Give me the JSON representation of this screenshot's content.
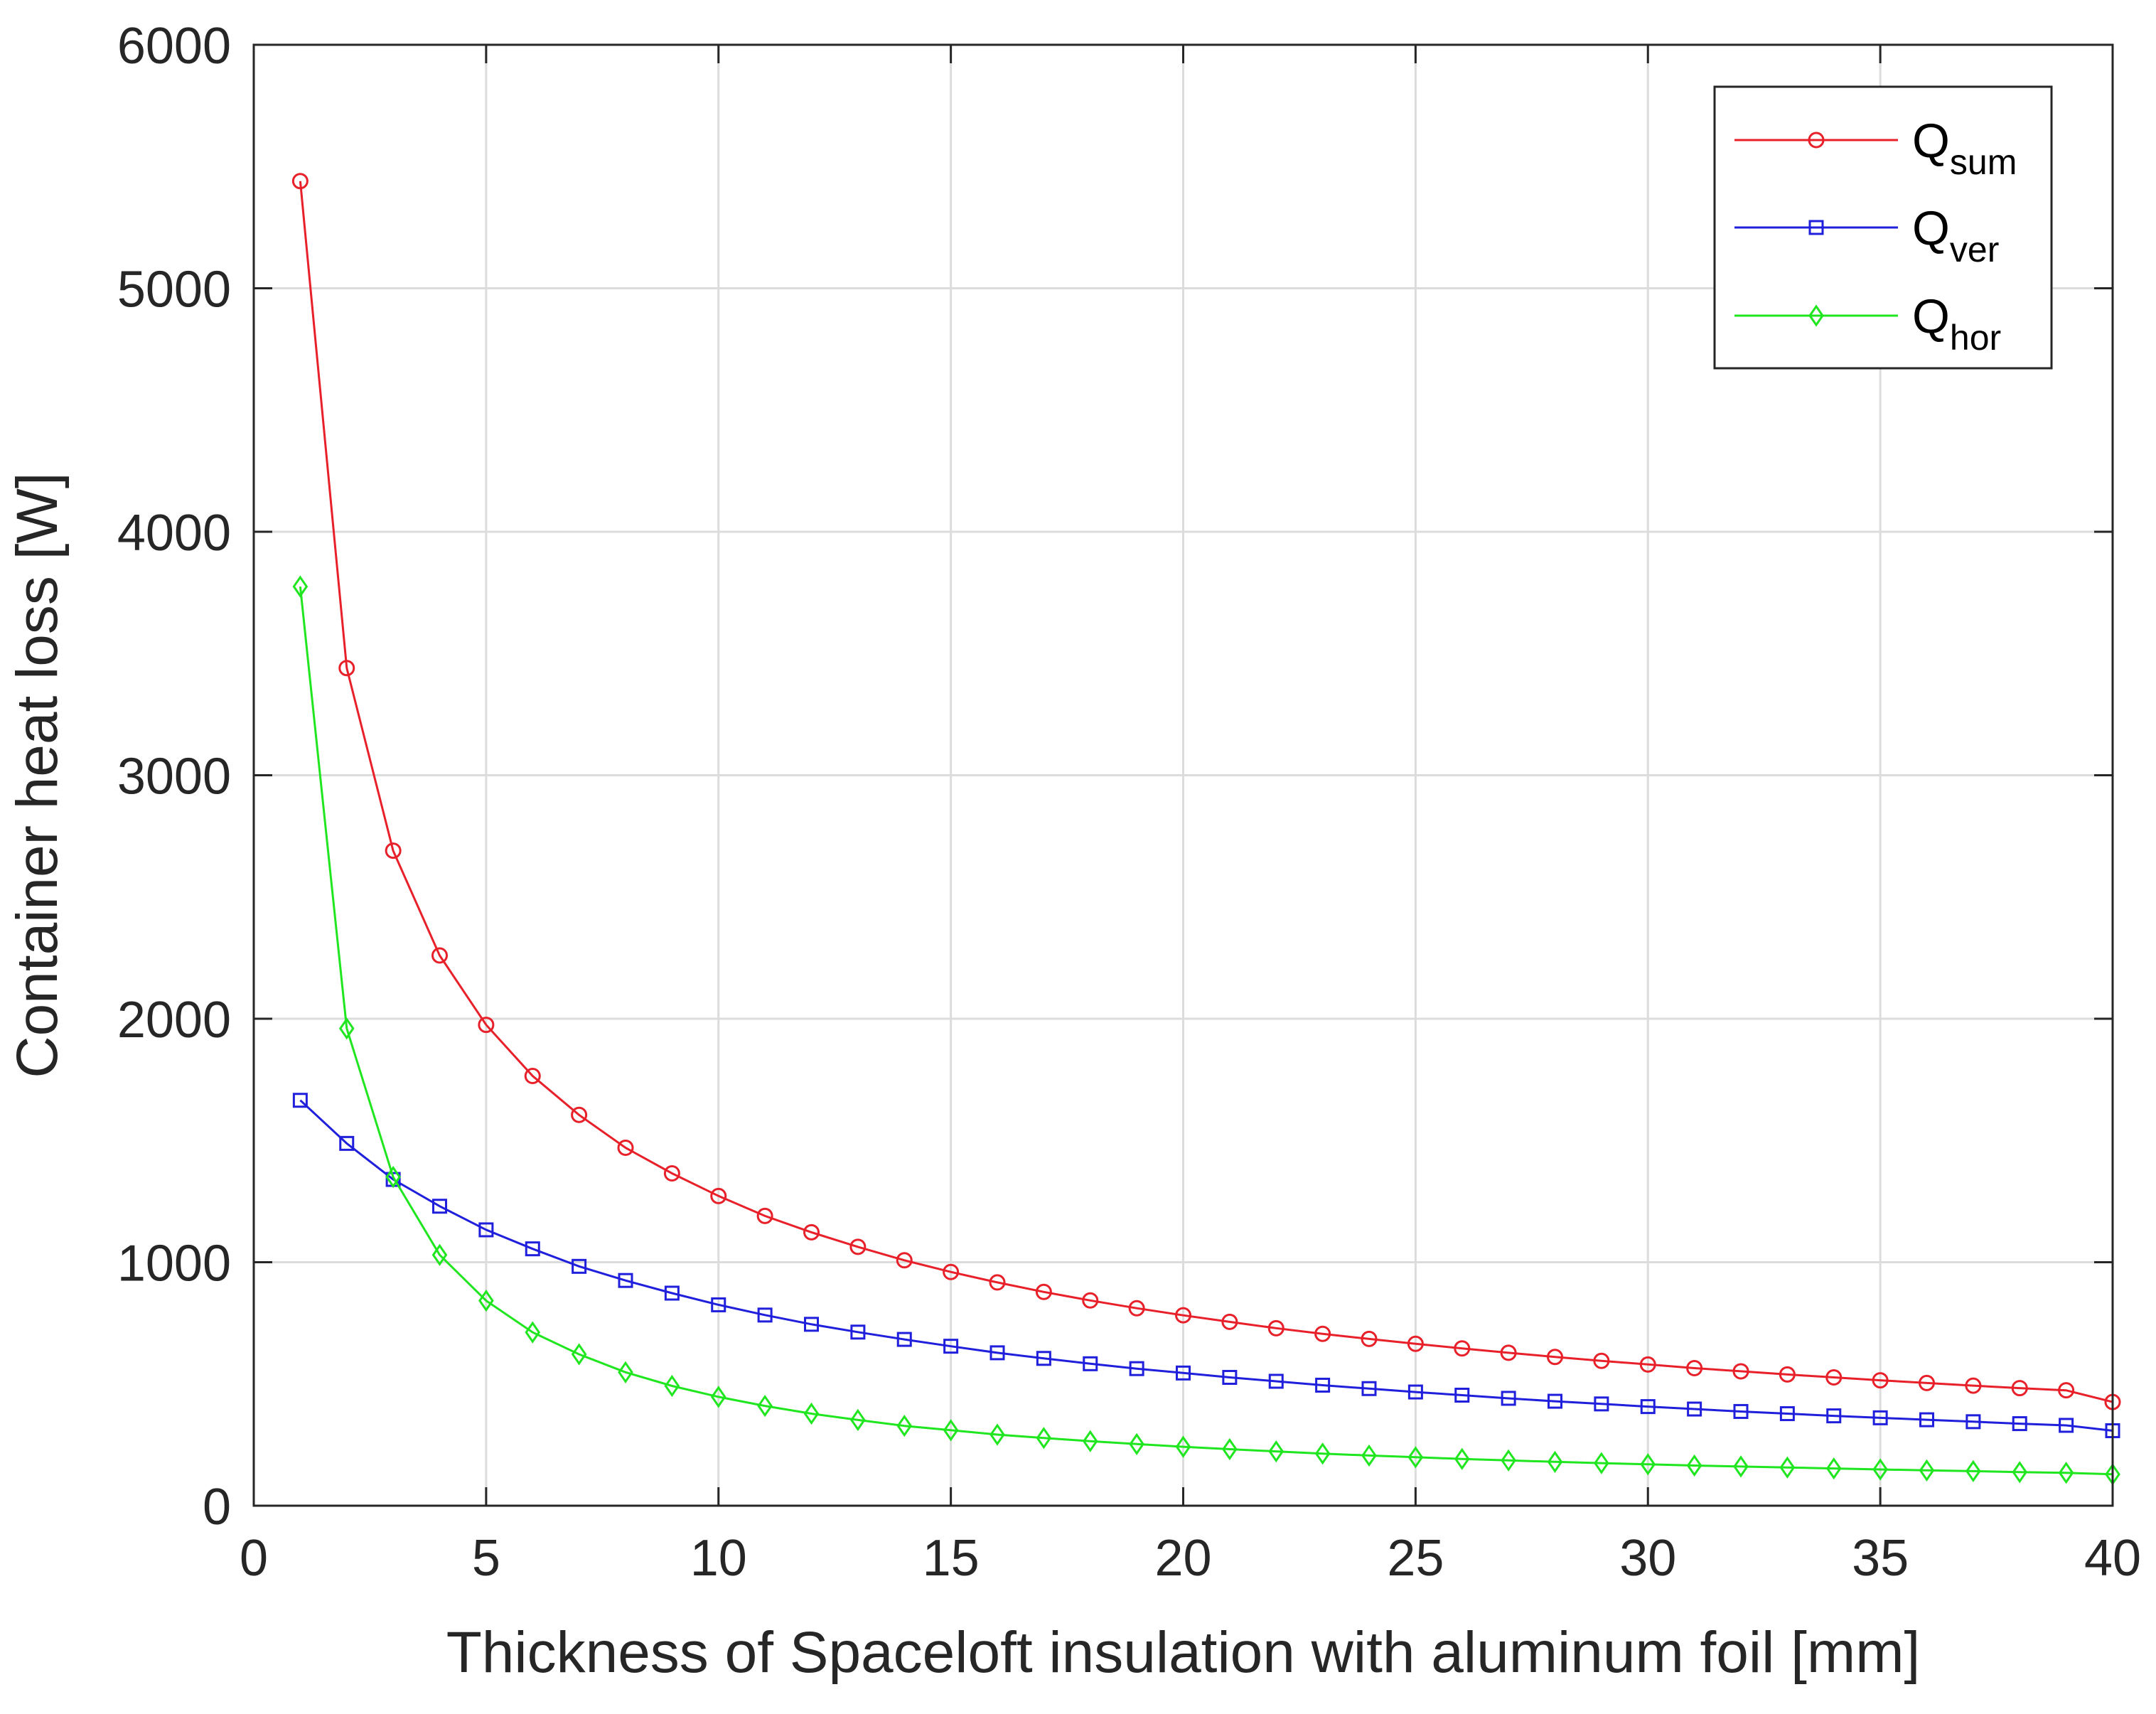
{
  "chart_data": {
    "type": "line",
    "title": "",
    "xlabel": "Thickness of Spaceloft insulation with aluminum foil [mm]",
    "ylabel": "Container heat loss [W]",
    "xlim": [
      0,
      40
    ],
    "ylim": [
      0,
      6000
    ],
    "xticks": [
      0,
      5,
      10,
      15,
      20,
      25,
      30,
      35,
      40
    ],
    "yticks": [
      0,
      1000,
      2000,
      3000,
      4000,
      5000,
      6000
    ],
    "grid": true,
    "legend_position": "top-right",
    "x": [
      1,
      2,
      3,
      4,
      5,
      6,
      7,
      8,
      9,
      10,
      11,
      12,
      13,
      14,
      15,
      16,
      17,
      18,
      19,
      20,
      21,
      22,
      23,
      24,
      25,
      26,
      27,
      28,
      29,
      30,
      31,
      32,
      33,
      34,
      35,
      36,
      37,
      38,
      39,
      40
    ],
    "series": [
      {
        "name": "Q",
        "subscript": "sum",
        "color": "#e8202a",
        "marker": "circle",
        "values": [
          5440,
          3440,
          2690,
          2260,
          1975,
          1765,
          1605,
          1470,
          1365,
          1272,
          1190,
          1123,
          1063,
          1008,
          960,
          917,
          878,
          843,
          811,
          782,
          755,
          729,
          706,
          685,
          665,
          646,
          628,
          611,
          595,
          580,
          565,
          552,
          539,
          527,
          515,
          504,
          493,
          483,
          474,
          426
        ]
      },
      {
        "name": "Q",
        "subscript": "ver",
        "color": "#1f1fdc",
        "marker": "square",
        "values": [
          1665,
          1488,
          1340,
          1230,
          1133,
          1055,
          983,
          925,
          873,
          825,
          783,
          745,
          713,
          683,
          655,
          628,
          605,
          583,
          563,
          545,
          527,
          511,
          495,
          481,
          467,
          454,
          441,
          429,
          418,
          407,
          397,
          387,
          378,
          369,
          361,
          353,
          345,
          337,
          330,
          308
        ]
      },
      {
        "name": "Q",
        "subscript": "hor",
        "color": "#1fe61f",
        "marker": "diamond",
        "values": [
          3775,
          1960,
          1350,
          1030,
          842,
          712,
          622,
          548,
          492,
          447,
          410,
          378,
          352,
          328,
          310,
          292,
          278,
          265,
          253,
          242,
          232,
          223,
          214,
          206,
          199,
          192,
          186,
          180,
          175,
          170,
          165,
          161,
          157,
          153,
          149,
          145,
          142,
          138,
          135,
          129
        ]
      }
    ]
  }
}
